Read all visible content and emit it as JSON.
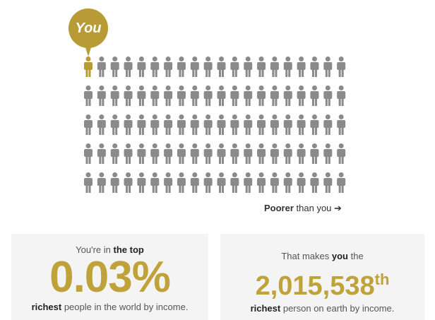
{
  "bubble_label": "You",
  "grid": {
    "rows": 5,
    "cols": 20,
    "highlight_index": 0,
    "highlight_color": "#b89b34",
    "figure_color": "#8a8a8a"
  },
  "poorer": {
    "bold": "Poorer",
    "rest": "than you",
    "arrow": "➔"
  },
  "left_box": {
    "pre": "You're in ",
    "pre_bold": "the top",
    "value": "0.03%",
    "post_bold": "richest",
    "post": " people in the world by income."
  },
  "right_box": {
    "pre": "That makes ",
    "pre_bold": "you",
    "pre_after": " the",
    "value": "2,015,538",
    "suffix": "th",
    "post_bold": "richest",
    "post": " person on earth by income."
  },
  "colors": {
    "accent": "#bfa33a",
    "box_bg": "#f4f4f4"
  }
}
